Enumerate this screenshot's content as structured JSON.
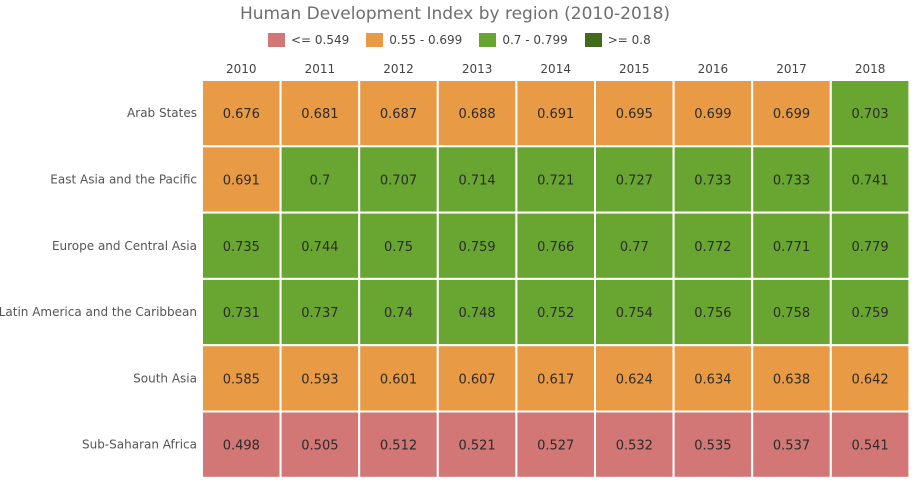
{
  "chart_data": {
    "type": "heatmap",
    "title": "Human Development Index by region (2010-2018)",
    "x": [
      "2010",
      "2011",
      "2012",
      "2013",
      "2014",
      "2015",
      "2016",
      "2017",
      "2018"
    ],
    "y": [
      "Arab States",
      "East Asia and the Pacific",
      "Europe and Central Asia",
      "Latin America and the Caribbean",
      "South Asia",
      "Sub-Saharan Africa"
    ],
    "values": [
      [
        "0.676",
        "0.681",
        "0.687",
        "0.688",
        "0.691",
        "0.695",
        "0.699",
        "0.699",
        "0.703"
      ],
      [
        "0.691",
        "0.7",
        "0.707",
        "0.714",
        "0.721",
        "0.727",
        "0.733",
        "0.733",
        "0.741"
      ],
      [
        "0.735",
        "0.744",
        "0.75",
        "0.759",
        "0.766",
        "0.77",
        "0.772",
        "0.771",
        "0.779"
      ],
      [
        "0.731",
        "0.737",
        "0.74",
        "0.748",
        "0.752",
        "0.754",
        "0.756",
        "0.758",
        "0.759"
      ],
      [
        "0.585",
        "0.593",
        "0.601",
        "0.607",
        "0.617",
        "0.624",
        "0.634",
        "0.638",
        "0.642"
      ],
      [
        "0.498",
        "0.505",
        "0.512",
        "0.521",
        "0.527",
        "0.532",
        "0.535",
        "0.537",
        "0.541"
      ]
    ],
    "legend": [
      {
        "label": "<= 0.549",
        "color": "#d27676",
        "max": 0.549
      },
      {
        "label": "0.55 - 0.699",
        "color": "#e89a45",
        "max": 0.699
      },
      {
        "label": "0.7 - 0.799",
        "color": "#69a531",
        "max": 0.799
      },
      {
        "label": ">= 0.8",
        "color": "#416b1a",
        "max": 1
      }
    ],
    "legend_position": "top",
    "x_axis_position": "top"
  }
}
